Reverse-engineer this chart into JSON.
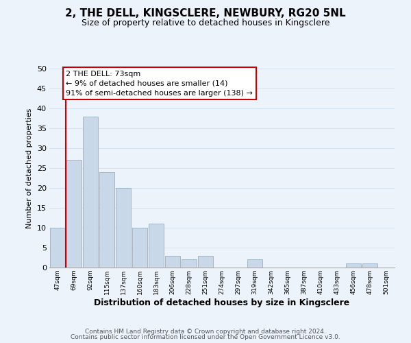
{
  "title_line1": "2, THE DELL, KINGSCLERE, NEWBURY, RG20 5NL",
  "title_line2": "Size of property relative to detached houses in Kingsclere",
  "xlabel": "Distribution of detached houses by size in Kingsclere",
  "ylabel": "Number of detached properties",
  "bin_labels": [
    "47sqm",
    "69sqm",
    "92sqm",
    "115sqm",
    "137sqm",
    "160sqm",
    "183sqm",
    "206sqm",
    "228sqm",
    "251sqm",
    "274sqm",
    "297sqm",
    "319sqm",
    "342sqm",
    "365sqm",
    "387sqm",
    "410sqm",
    "433sqm",
    "456sqm",
    "478sqm",
    "501sqm"
  ],
  "bar_heights": [
    10,
    27,
    38,
    24,
    20,
    10,
    11,
    3,
    2,
    3,
    0,
    0,
    2,
    0,
    0,
    0,
    0,
    0,
    1,
    1,
    0
  ],
  "bar_color": "#c8d8e8",
  "bar_edge_color": "#a0b8cc",
  "vline_x_index": 1,
  "vline_color": "#cc0000",
  "ylim": [
    0,
    50
  ],
  "yticks": [
    0,
    5,
    10,
    15,
    20,
    25,
    30,
    35,
    40,
    45,
    50
  ],
  "annotation_title": "2 THE DELL: 73sqm",
  "annotation_line1": "← 9% of detached houses are smaller (14)",
  "annotation_line2": "91% of semi-detached houses are larger (138) →",
  "annotation_box_facecolor": "#ffffff",
  "annotation_box_edgecolor": "#cc0000",
  "footer_line1": "Contains HM Land Registry data © Crown copyright and database right 2024.",
  "footer_line2": "Contains public sector information licensed under the Open Government Licence v3.0.",
  "grid_color": "#d4e2ef",
  "background_color": "#edf3fa",
  "title1_fontsize": 11,
  "title2_fontsize": 9,
  "xlabel_fontsize": 9,
  "ylabel_fontsize": 8,
  "ytick_fontsize": 8,
  "xtick_fontsize": 6.5,
  "footer_fontsize": 6.5,
  "ann_fontsize": 8
}
